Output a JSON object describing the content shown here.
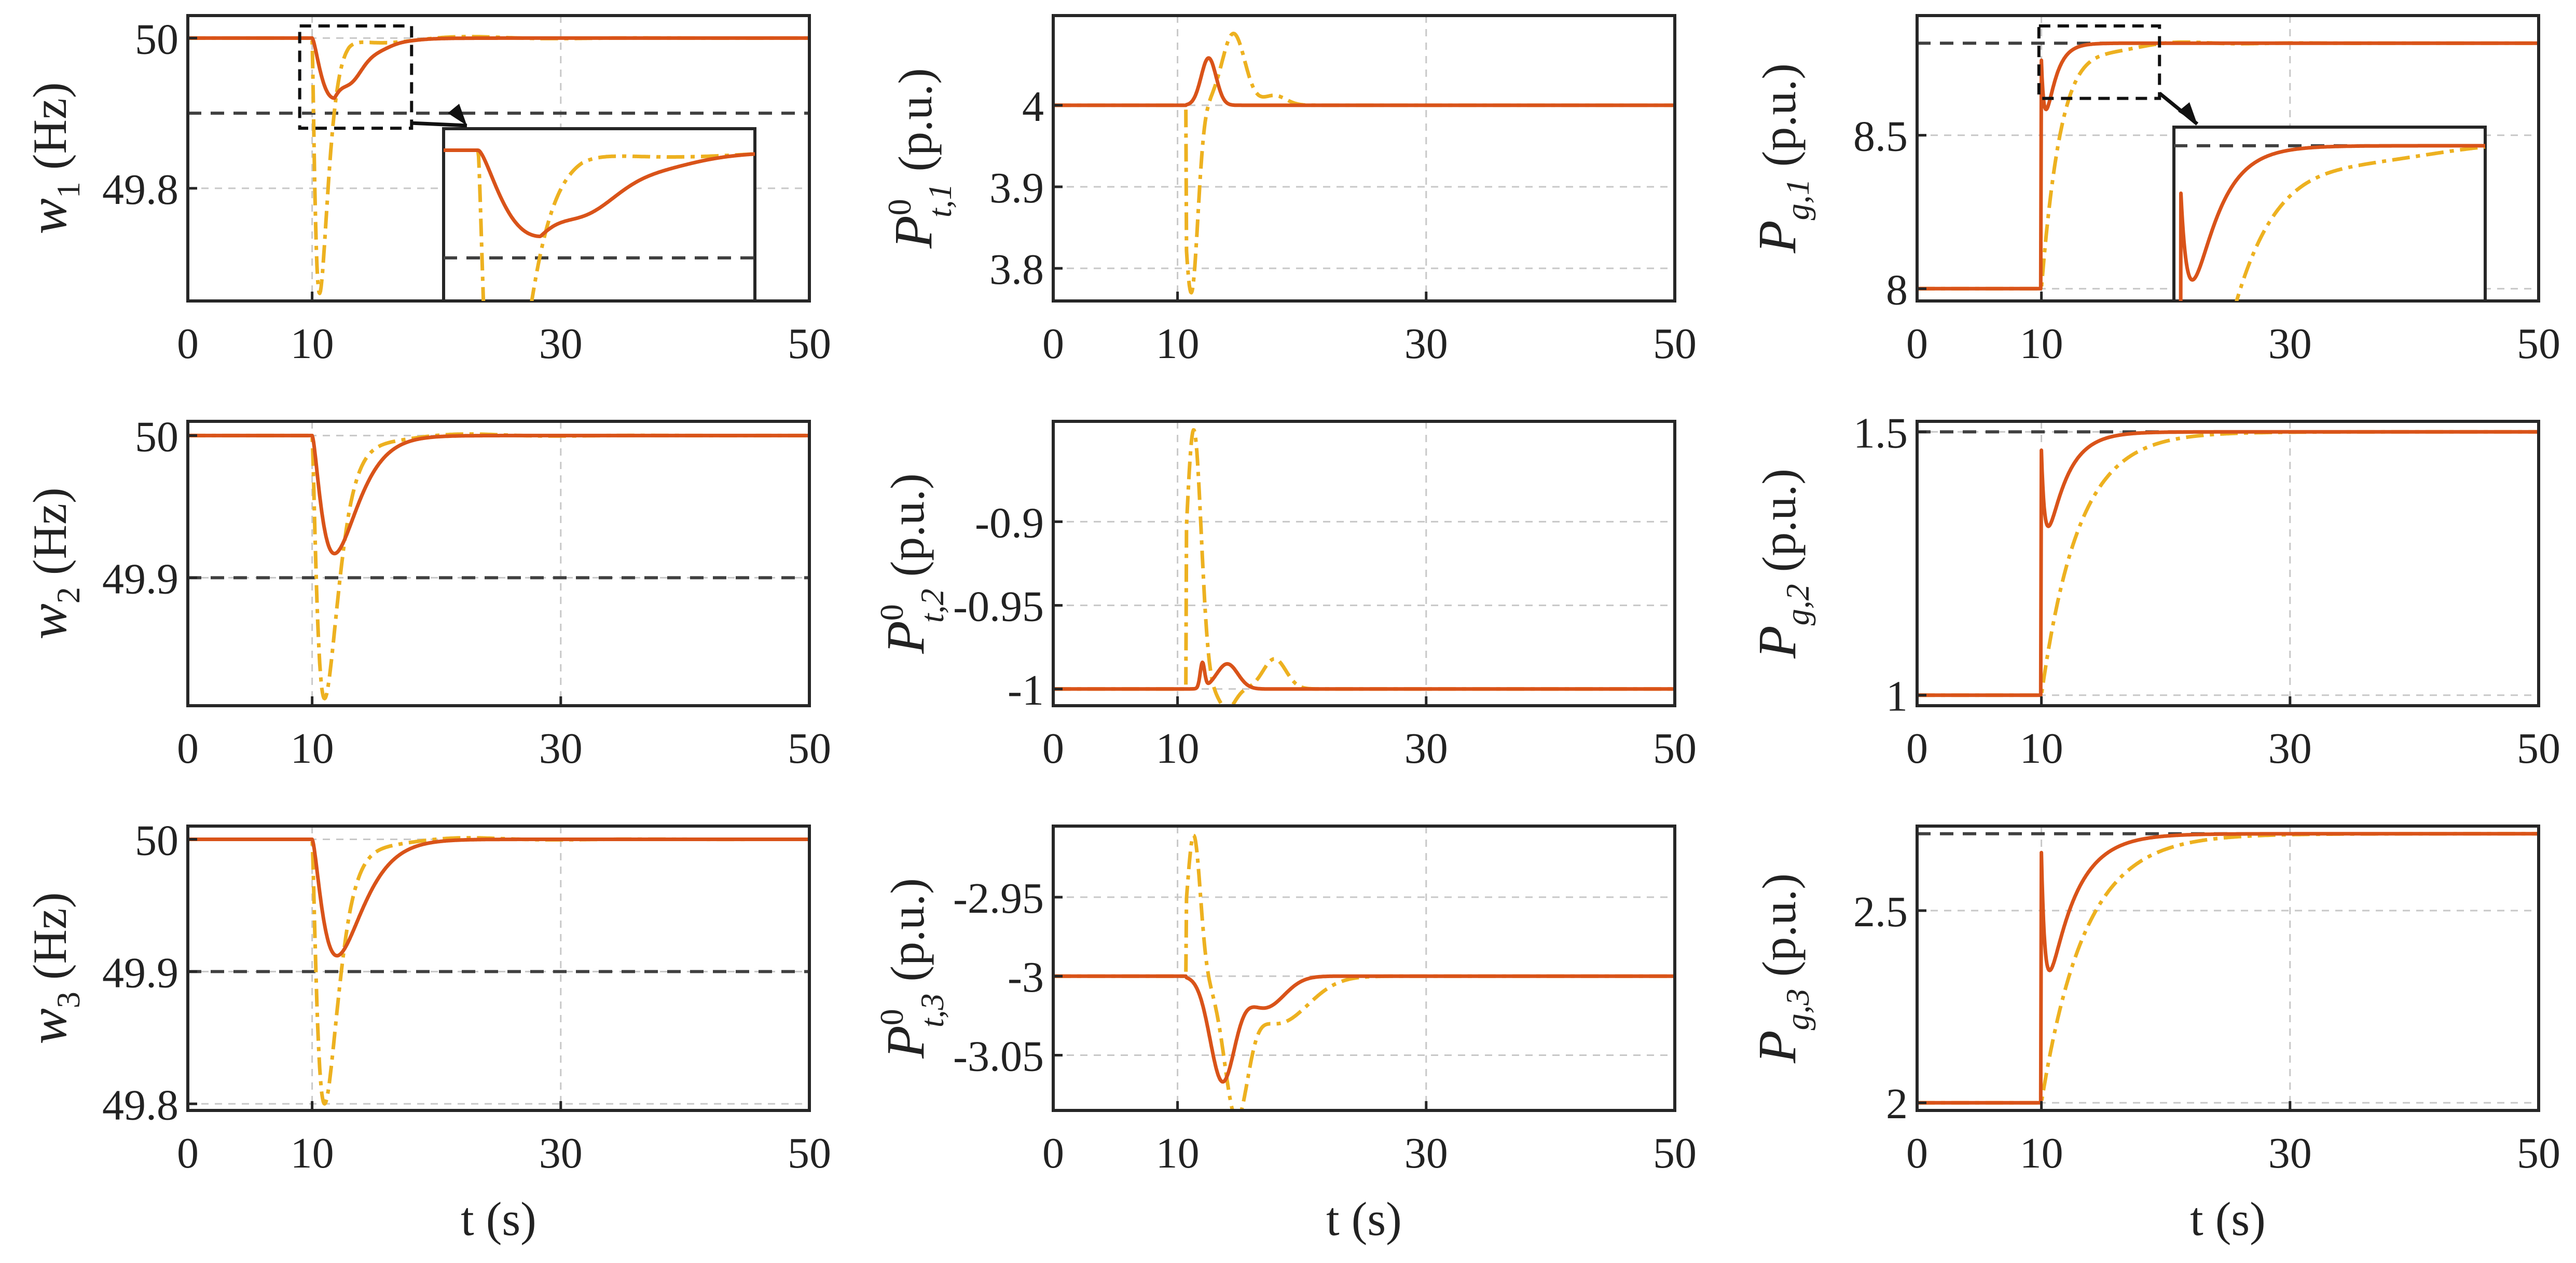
{
  "colors": {
    "series1": "#D95319",
    "series2": "#EDB120",
    "reference": "#404040"
  },
  "chart_data": [
    {
      "id": "w1",
      "type": "line",
      "ylabel_main": "w",
      "ylabel_sub": "1",
      "ylabel_unit": "(Hz)",
      "xlabel": "",
      "xlim": [
        0,
        50
      ],
      "xticks": [
        "0",
        "10",
        "30",
        "50"
      ],
      "ylim": [
        49.65,
        50.03
      ],
      "yticks": [
        49.8,
        50
      ],
      "ytick_labels": [
        "49.8",
        "50"
      ],
      "reference": 49.9,
      "kind": "freq",
      "start": 50,
      "depth1": 0.08,
      "t1": 11.8,
      "depth2": 0.34,
      "t2": 10.6
    },
    {
      "id": "pt1",
      "type": "line",
      "ylabel_main": "P",
      "ylabel_sup": "0",
      "ylabel_sub": "t,1",
      "ylabel_unit": "(p.u.)",
      "xlabel": "",
      "xlim": [
        0,
        50
      ],
      "xticks": [
        "0",
        "10",
        "30",
        "50"
      ],
      "ylim": [
        3.76,
        4.11
      ],
      "yticks": [
        3.8,
        3.9,
        4
      ],
      "ytick_labels": [
        "3.8",
        "3.9",
        "4"
      ],
      "kind": "power",
      "start": 4,
      "end": 4,
      "osc1": [
        {
          "t": 12.5,
          "a": 0.058,
          "w": 0.85
        }
      ],
      "osc2": [
        {
          "t": 11.1,
          "a": -0.23,
          "w": 0.75
        },
        {
          "t": 14.5,
          "a": 0.088,
          "w": 1.3
        },
        {
          "t": 17.8,
          "a": 0.012,
          "w": 1.3
        }
      ]
    },
    {
      "id": "pg1",
      "type": "line",
      "ylabel_main": "P",
      "ylabel_sub": "g,1",
      "ylabel_unit": "(p.u.)",
      "xlabel": "",
      "xlim": [
        0,
        50
      ],
      "xticks": [
        "0",
        "10",
        "30",
        "50"
      ],
      "ylim": [
        7.96,
        8.89
      ],
      "yticks": [
        8,
        8.5
      ],
      "ytick_labels": [
        "8",
        "8.5"
      ],
      "reference": 8.8,
      "kind": "gen",
      "start": 8,
      "end": 8.8,
      "dip1": 0.25,
      "tau1": 0.8,
      "dip2": 0.6,
      "tau2": 1.6,
      "over2": 0.05
    },
    {
      "id": "w2",
      "type": "line",
      "ylabel_main": "w",
      "ylabel_sub": "2",
      "ylabel_unit": "(Hz)",
      "xlabel": "",
      "xlim": [
        0,
        50
      ],
      "xticks": [
        "0",
        "10",
        "30",
        "50"
      ],
      "ylim": [
        49.81,
        50.01
      ],
      "yticks": [
        49.9,
        50
      ],
      "ytick_labels": [
        "49.9",
        "50"
      ],
      "reference": 49.9,
      "kind": "freq",
      "start": 50,
      "depth1": 0.083,
      "t1": 11.8,
      "depth2": 0.185,
      "t2": 11.0
    },
    {
      "id": "pt2",
      "type": "line",
      "ylabel_main": "P",
      "ylabel_sup": "0",
      "ylabel_sub": "t,2",
      "ylabel_unit": "(p.u.)",
      "xlabel": "",
      "xlim": [
        0,
        50
      ],
      "xticks": [
        "0",
        "10",
        "30",
        "50"
      ],
      "ylim": [
        -1.01,
        -0.84
      ],
      "yticks": [
        -1,
        -0.95,
        -0.9
      ],
      "ytick_labels": [
        "-1",
        "-0.95",
        "-0.9"
      ],
      "kind": "power",
      "start": -1,
      "end": -1,
      "osc1": [
        {
          "t": 12.0,
          "a": 0.015,
          "w": 0.25
        },
        {
          "t": 14.0,
          "a": 0.015,
          "w": 1.2
        }
      ],
      "osc2": [
        {
          "t": 11.3,
          "a": 0.155,
          "w": 0.85
        },
        {
          "t": 14.0,
          "a": -0.012,
          "w": 0.9
        },
        {
          "t": 17.8,
          "a": 0.018,
          "w": 1.3
        }
      ]
    },
    {
      "id": "pg2",
      "type": "line",
      "ylabel_main": "P",
      "ylabel_sub": "g,2",
      "ylabel_unit": "(p.u.)",
      "xlabel": "",
      "xlim": [
        0,
        50
      ],
      "xticks": [
        "0",
        "10",
        "30",
        "50"
      ],
      "ylim": [
        0.98,
        1.52
      ],
      "yticks": [
        1,
        1.5
      ],
      "ytick_labels": [
        "1",
        "1.5"
      ],
      "reference": 1.5,
      "kind": "gen",
      "start": 1,
      "end": 1.5,
      "dip1": 0.25,
      "tau1": 1.6,
      "dip2": 0.5,
      "tau2": 3.0,
      "over2": 0.0
    },
    {
      "id": "w3",
      "type": "line",
      "ylabel_main": "w",
      "ylabel_sub": "3",
      "ylabel_unit": "(Hz)",
      "xlabel": "t (s)",
      "xlim": [
        0,
        50
      ],
      "xticks": [
        "0",
        "10",
        "30",
        "50"
      ],
      "ylim": [
        49.795,
        50.01
      ],
      "yticks": [
        49.8,
        49.9,
        50
      ],
      "ytick_labels": [
        "49.8",
        "49.9",
        "50"
      ],
      "reference": 49.9,
      "kind": "freq",
      "start": 50,
      "depth1": 0.088,
      "t1": 12.0,
      "depth2": 0.2,
      "t2": 11.0
    },
    {
      "id": "pt3",
      "type": "line",
      "ylabel_main": "P",
      "ylabel_sup": "0",
      "ylabel_sub": "t,3",
      "ylabel_unit": "(p.u.)",
      "xlabel": "t (s)",
      "xlim": [
        0,
        50
      ],
      "xticks": [
        "0",
        "10",
        "30",
        "50"
      ],
      "ylim": [
        -3.085,
        -2.905
      ],
      "yticks": [
        -3.05,
        -3,
        -2.95
      ],
      "ytick_labels": [
        "-3.05",
        "-3",
        "-2.95"
      ],
      "kind": "power",
      "start": -3,
      "end": -3,
      "osc1": [
        {
          "t": 13.6,
          "a": -0.065,
          "w": 1.4
        },
        {
          "t": 17.0,
          "a": -0.02,
          "w": 2.2
        }
      ],
      "osc2": [
        {
          "t": 11.3,
          "a": 0.09,
          "w": 0.75
        },
        {
          "t": 14.7,
          "a": -0.078,
          "w": 1.3
        },
        {
          "t": 18.0,
          "a": -0.03,
          "w": 3.5
        }
      ]
    },
    {
      "id": "pg3",
      "type": "line",
      "ylabel_main": "P",
      "ylabel_sub": "g,3",
      "ylabel_unit": "(p.u.)",
      "xlabel": "t (s)",
      "xlim": [
        0,
        50
      ],
      "xticks": [
        "0",
        "10",
        "30",
        "50"
      ],
      "ylim": [
        1.98,
        2.72
      ],
      "yticks": [
        2,
        2.5
      ],
      "ytick_labels": [
        "2",
        "2.5"
      ],
      "reference": 2.7,
      "kind": "gen",
      "start": 2,
      "end": 2.7,
      "dip1": 0.33,
      "tau1": 2.2,
      "dip2": 0.72,
      "tau2": 3.5,
      "over2": 0.0
    }
  ]
}
